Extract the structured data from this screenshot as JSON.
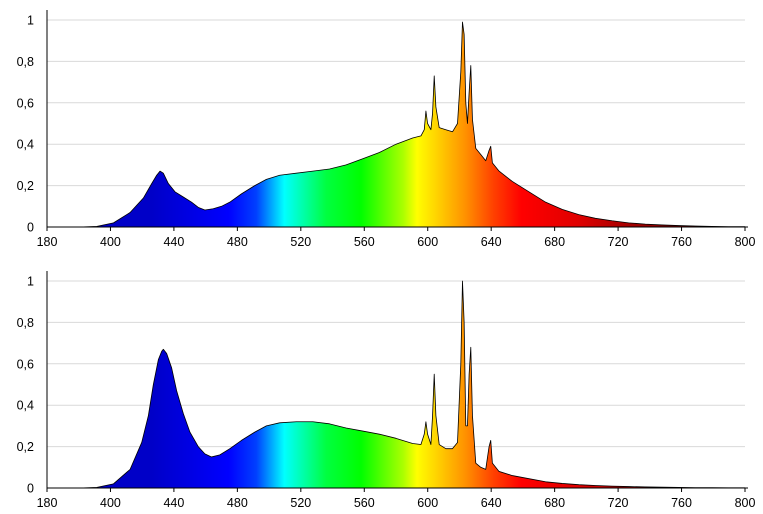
{
  "chart_data": [
    {
      "type": "area",
      "title": "",
      "xlabel": "",
      "ylabel": "",
      "xlim": [
        380,
        800
      ],
      "ylim": [
        0,
        1
      ],
      "grid": "horizontal",
      "x_tick_labels": [
        "180",
        "400",
        "440",
        "480",
        "520",
        "560",
        "600",
        "640",
        "680",
        "720",
        "760",
        "800"
      ],
      "y_tick_labels": [
        "0",
        "0,2",
        "0,4",
        "0,6",
        "0,8",
        "1"
      ],
      "series": [
        {
          "points": [
            [
              380,
              0
            ],
            [
              400,
              0
            ],
            [
              410,
              0.003
            ],
            [
              420,
              0.02
            ],
            [
              430,
              0.07
            ],
            [
              438,
              0.14
            ],
            [
              443,
              0.21
            ],
            [
              446,
              0.25
            ],
            [
              448,
              0.27
            ],
            [
              450,
              0.26
            ],
            [
              453,
              0.21
            ],
            [
              457,
              0.17
            ],
            [
              462,
              0.145
            ],
            [
              467,
              0.12
            ],
            [
              471,
              0.095
            ],
            [
              475,
              0.082
            ],
            [
              480,
              0.088
            ],
            [
              485,
              0.1
            ],
            [
              490,
              0.12
            ],
            [
              497,
              0.16
            ],
            [
              505,
              0.2
            ],
            [
              512,
              0.23
            ],
            [
              520,
              0.25
            ],
            [
              530,
              0.26
            ],
            [
              540,
              0.27
            ],
            [
              550,
              0.28
            ],
            [
              560,
              0.3
            ],
            [
              570,
              0.33
            ],
            [
              580,
              0.36
            ],
            [
              590,
              0.4
            ],
            [
              600,
              0.43
            ],
            [
              605,
              0.44
            ],
            [
              607,
              0.47
            ],
            [
              608,
              0.56
            ],
            [
              609,
              0.5
            ],
            [
              611,
              0.47
            ],
            [
              612,
              0.55
            ],
            [
              613,
              0.73
            ],
            [
              614,
              0.58
            ],
            [
              616,
              0.48
            ],
            [
              620,
              0.47
            ],
            [
              624,
              0.46
            ],
            [
              627,
              0.5
            ],
            [
              629,
              0.75
            ],
            [
              630,
              0.99
            ],
            [
              631,
              0.93
            ],
            [
              632,
              0.6
            ],
            [
              633,
              0.5
            ],
            [
              634,
              0.65
            ],
            [
              635,
              0.78
            ],
            [
              636,
              0.52
            ],
            [
              638,
              0.38
            ],
            [
              641,
              0.35
            ],
            [
              644,
              0.32
            ],
            [
              646,
              0.37
            ],
            [
              647,
              0.39
            ],
            [
              648,
              0.31
            ],
            [
              652,
              0.27
            ],
            [
              660,
              0.22
            ],
            [
              670,
              0.17
            ],
            [
              680,
              0.12
            ],
            [
              690,
              0.085
            ],
            [
              700,
              0.06
            ],
            [
              710,
              0.042
            ],
            [
              720,
              0.03
            ],
            [
              730,
              0.02
            ],
            [
              740,
              0.014
            ],
            [
              750,
              0.01
            ],
            [
              760,
              0.007
            ],
            [
              770,
              0.005
            ],
            [
              780,
              0.003
            ],
            [
              790,
              0.002
            ],
            [
              800,
              0.002
            ]
          ]
        }
      ]
    },
    {
      "type": "area",
      "title": "",
      "xlabel": "",
      "ylabel": "",
      "xlim": [
        380,
        800
      ],
      "ylim": [
        0,
        1
      ],
      "grid": "horizontal",
      "x_tick_labels": [
        "180",
        "400",
        "440",
        "480",
        "520",
        "560",
        "600",
        "640",
        "680",
        "720",
        "760",
        "800"
      ],
      "y_tick_labels": [
        "0",
        "0,2",
        "0,4",
        "0,6",
        "0,8",
        "1"
      ],
      "series": [
        {
          "points": [
            [
              380,
              0
            ],
            [
              400,
              0
            ],
            [
              410,
              0.003
            ],
            [
              420,
              0.02
            ],
            [
              430,
              0.09
            ],
            [
              437,
              0.22
            ],
            [
              441,
              0.35
            ],
            [
              444,
              0.5
            ],
            [
              447,
              0.62
            ],
            [
              449,
              0.66
            ],
            [
              450,
              0.67
            ],
            [
              452,
              0.65
            ],
            [
              455,
              0.58
            ],
            [
              458,
              0.47
            ],
            [
              462,
              0.36
            ],
            [
              466,
              0.27
            ],
            [
              471,
              0.2
            ],
            [
              475,
              0.165
            ],
            [
              479,
              0.15
            ],
            [
              484,
              0.16
            ],
            [
              490,
              0.19
            ],
            [
              497,
              0.23
            ],
            [
              505,
              0.27
            ],
            [
              512,
              0.3
            ],
            [
              520,
              0.315
            ],
            [
              530,
              0.32
            ],
            [
              540,
              0.32
            ],
            [
              550,
              0.31
            ],
            [
              560,
              0.29
            ],
            [
              570,
              0.275
            ],
            [
              580,
              0.26
            ],
            [
              590,
              0.24
            ],
            [
              600,
              0.215
            ],
            [
              605,
              0.21
            ],
            [
              607,
              0.26
            ],
            [
              608,
              0.32
            ],
            [
              609,
              0.26
            ],
            [
              611,
              0.21
            ],
            [
              612,
              0.35
            ],
            [
              613,
              0.55
            ],
            [
              614,
              0.35
            ],
            [
              616,
              0.21
            ],
            [
              620,
              0.19
            ],
            [
              624,
              0.19
            ],
            [
              627,
              0.22
            ],
            [
              629,
              0.6
            ],
            [
              630,
              1.0
            ],
            [
              631,
              0.8
            ],
            [
              632,
              0.3
            ],
            [
              633,
              0.3
            ],
            [
              634,
              0.55
            ],
            [
              635,
              0.68
            ],
            [
              636,
              0.35
            ],
            [
              638,
              0.12
            ],
            [
              641,
              0.1
            ],
            [
              644,
              0.09
            ],
            [
              646,
              0.2
            ],
            [
              647,
              0.23
            ],
            [
              648,
              0.12
            ],
            [
              652,
              0.08
            ],
            [
              660,
              0.06
            ],
            [
              670,
              0.045
            ],
            [
              680,
              0.03
            ],
            [
              690,
              0.022
            ],
            [
              700,
              0.016
            ],
            [
              710,
              0.012
            ],
            [
              720,
              0.009
            ],
            [
              730,
              0.007
            ],
            [
              740,
              0.005
            ],
            [
              750,
              0.004
            ],
            [
              760,
              0.003
            ],
            [
              770,
              0.002
            ],
            [
              780,
              0.002
            ],
            [
              790,
              0.001
            ],
            [
              800,
              0.001
            ]
          ]
        }
      ]
    }
  ]
}
